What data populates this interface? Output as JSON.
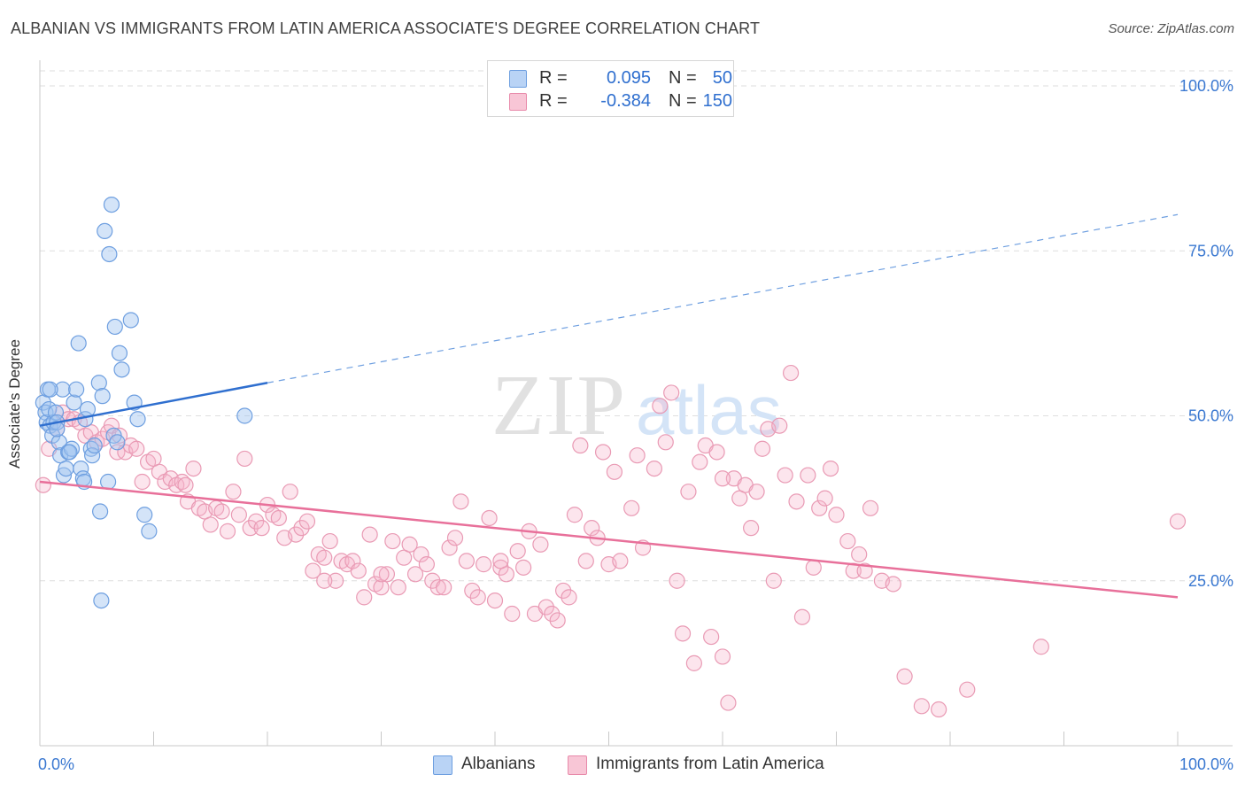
{
  "title": "ALBANIAN VS IMMIGRANTS FROM LATIN AMERICA ASSOCIATE'S DEGREE CORRELATION CHART",
  "source": "Source: ZipAtlas.com",
  "watermark": {
    "zip": "ZIP",
    "atlas": "atlas"
  },
  "legend": {
    "r_label": "R =",
    "n_label": "N =",
    "rows": [
      {
        "r": "0.095",
        "n": "50",
        "fill": "#b9d3f5",
        "stroke": "#6e9fe0"
      },
      {
        "r": "-0.384",
        "n": "150",
        "fill": "#f8c6d6",
        "stroke": "#e88aaa"
      }
    ]
  },
  "bottom_legend": [
    {
      "label": "Albanians",
      "fill": "#b9d3f5",
      "stroke": "#6e9fe0"
    },
    {
      "label": "Immigrants from Latin America",
      "fill": "#f8c6d6",
      "stroke": "#e88aaa"
    }
  ],
  "colors": {
    "blue": "#2f6fcf",
    "pink": "#e8709a",
    "grid": "#dedede",
    "axis_text": "#3a78d1"
  },
  "chart_data": {
    "type": "scatter",
    "title": "ALBANIAN VS IMMIGRANTS FROM LATIN AMERICA ASSOCIATE'S DEGREE CORRELATION CHART",
    "xlabel": "",
    "ylabel": "Associate's Degree",
    "xlim": [
      0,
      100
    ],
    "ylim": [
      0,
      102
    ],
    "x_tick_labels": [
      "0.0%",
      "100.0%"
    ],
    "y_ticks": [
      25,
      50,
      75,
      100
    ],
    "y_tick_labels": [
      "25.0%",
      "50.0%",
      "75.0%",
      "100.0%"
    ],
    "grid": "horizontal-dashed",
    "series": [
      {
        "name": "Albanians",
        "R": 0.095,
        "N": 50,
        "trend": {
          "x0": 0,
          "y0": 48.5,
          "x1": 20,
          "y1": 55,
          "dashed_to_x": 100,
          "dashed_to_y": 80.5
        },
        "points": [
          [
            0.3,
            52
          ],
          [
            0.5,
            50.5
          ],
          [
            0.6,
            49
          ],
          [
            0.7,
            54
          ],
          [
            0.8,
            51
          ],
          [
            0.9,
            48.5
          ],
          [
            1.1,
            47
          ],
          [
            1.2,
            49
          ],
          [
            1.4,
            50.5
          ],
          [
            1.5,
            49
          ],
          [
            1.7,
            46
          ],
          [
            1.8,
            44
          ],
          [
            2,
            54
          ],
          [
            2.1,
            41
          ],
          [
            2.3,
            42
          ],
          [
            2.5,
            44.5
          ],
          [
            2.8,
            45
          ],
          [
            3,
            52
          ],
          [
            3.2,
            54
          ],
          [
            3.4,
            61
          ],
          [
            3.6,
            42
          ],
          [
            3.8,
            40.5
          ],
          [
            4,
            49.5
          ],
          [
            4.2,
            51
          ],
          [
            4.5,
            45
          ],
          [
            4.6,
            44
          ],
          [
            4.8,
            45.5
          ],
          [
            5.2,
            55
          ],
          [
            5.3,
            35.5
          ],
          [
            5.4,
            22
          ],
          [
            5.5,
            53
          ],
          [
            5.7,
            78
          ],
          [
            6,
            40
          ],
          [
            6.1,
            74.5
          ],
          [
            6.3,
            82
          ],
          [
            6.5,
            47
          ],
          [
            6.6,
            63.5
          ],
          [
            7,
            59.5
          ],
          [
            7.2,
            57
          ],
          [
            8,
            64.5
          ],
          [
            8.3,
            52
          ],
          [
            8.6,
            49.5
          ],
          [
            9.2,
            35
          ],
          [
            9.6,
            32.5
          ],
          [
            18,
            50
          ],
          [
            1.5,
            48
          ],
          [
            2.6,
            44.5
          ],
          [
            3.9,
            40
          ],
          [
            6.8,
            46
          ],
          [
            0.9,
            54
          ]
        ]
      },
      {
        "name": "Immigrants from Latin America",
        "R": -0.384,
        "N": 150,
        "trend": {
          "x0": 0,
          "y0": 40,
          "x1": 100,
          "y1": 22.5
        },
        "points": [
          [
            0.3,
            39.5
          ],
          [
            0.8,
            45
          ],
          [
            1.5,
            48
          ],
          [
            2,
            50.5
          ],
          [
            2.5,
            49.5
          ],
          [
            3,
            49.5
          ],
          [
            3.5,
            49
          ],
          [
            4,
            47
          ],
          [
            4.5,
            47.5
          ],
          [
            5,
            46
          ],
          [
            5.5,
            46.5
          ],
          [
            6,
            47.5
          ],
          [
            6.3,
            48.5
          ],
          [
            6.8,
            44.5
          ],
          [
            7,
            47
          ],
          [
            7.5,
            44.5
          ],
          [
            8,
            45.5
          ],
          [
            8.5,
            45
          ],
          [
            9,
            40
          ],
          [
            9.5,
            43
          ],
          [
            10,
            43.5
          ],
          [
            10.5,
            41.5
          ],
          [
            11,
            40
          ],
          [
            11.5,
            40.5
          ],
          [
            12,
            39.5
          ],
          [
            12.5,
            40
          ],
          [
            12.8,
            39.5
          ],
          [
            13,
            37
          ],
          [
            13.5,
            42
          ],
          [
            14,
            36
          ],
          [
            14.5,
            35.5
          ],
          [
            15,
            33.5
          ],
          [
            15.5,
            36
          ],
          [
            16,
            35.5
          ],
          [
            16.5,
            32.5
          ],
          [
            17,
            38.5
          ],
          [
            17.5,
            35
          ],
          [
            18,
            43.5
          ],
          [
            18.5,
            33
          ],
          [
            19,
            34
          ],
          [
            19.5,
            33
          ],
          [
            20,
            36.5
          ],
          [
            20.5,
            35
          ],
          [
            21,
            34.5
          ],
          [
            21.5,
            31.5
          ],
          [
            22,
            38.5
          ],
          [
            22.5,
            32
          ],
          [
            23,
            33
          ],
          [
            23.5,
            34
          ],
          [
            24,
            26.5
          ],
          [
            24.5,
            29
          ],
          [
            25,
            28.5
          ],
          [
            25.5,
            31
          ],
          [
            26,
            25
          ],
          [
            26.5,
            28
          ],
          [
            27,
            27.5
          ],
          [
            27.5,
            28
          ],
          [
            28,
            26.5
          ],
          [
            28.5,
            22.5
          ],
          [
            29,
            32
          ],
          [
            29.5,
            24.5
          ],
          [
            30,
            24
          ],
          [
            30.5,
            26
          ],
          [
            31,
            31
          ],
          [
            31.5,
            24
          ],
          [
            32,
            28.5
          ],
          [
            32.5,
            30.5
          ],
          [
            33,
            26
          ],
          [
            33.5,
            29
          ],
          [
            34,
            27.5
          ],
          [
            34.5,
            25
          ],
          [
            35,
            24
          ],
          [
            35.5,
            24
          ],
          [
            36,
            30
          ],
          [
            36.5,
            31.5
          ],
          [
            37,
            37
          ],
          [
            37.5,
            28
          ],
          [
            38,
            23.5
          ],
          [
            38.5,
            22.5
          ],
          [
            39,
            27.5
          ],
          [
            39.5,
            34.5
          ],
          [
            40,
            22
          ],
          [
            40.5,
            27
          ],
          [
            41,
            26
          ],
          [
            41.5,
            20
          ],
          [
            42,
            29.5
          ],
          [
            42.5,
            27
          ],
          [
            43,
            32.5
          ],
          [
            43.5,
            20
          ],
          [
            44,
            30.5
          ],
          [
            44.5,
            21
          ],
          [
            45,
            20
          ],
          [
            45.5,
            19
          ],
          [
            46,
            23.5
          ],
          [
            46.5,
            22.5
          ],
          [
            47,
            35
          ],
          [
            47.5,
            45.5
          ],
          [
            48,
            28
          ],
          [
            48.5,
            33
          ],
          [
            49,
            31.5
          ],
          [
            49.5,
            44.5
          ],
          [
            50,
            27.5
          ],
          [
            50.5,
            41.5
          ],
          [
            51,
            28
          ],
          [
            52,
            36
          ],
          [
            52.5,
            44
          ],
          [
            53,
            30
          ],
          [
            54,
            42
          ],
          [
            54.5,
            51.5
          ],
          [
            55,
            46
          ],
          [
            55.5,
            53.5
          ],
          [
            56,
            25
          ],
          [
            56.5,
            17
          ],
          [
            57,
            38.5
          ],
          [
            57.5,
            12.5
          ],
          [
            58,
            43
          ],
          [
            58.5,
            45.5
          ],
          [
            59,
            16.5
          ],
          [
            59.5,
            44.5
          ],
          [
            60,
            13.5
          ],
          [
            60.5,
            6.5
          ],
          [
            61,
            40.5
          ],
          [
            61.5,
            37.5
          ],
          [
            62,
            39.5
          ],
          [
            62.5,
            33
          ],
          [
            63,
            38.5
          ],
          [
            63.5,
            45
          ],
          [
            64,
            48
          ],
          [
            64.5,
            25
          ],
          [
            65,
            48.5
          ],
          [
            65.5,
            41
          ],
          [
            66,
            56.5
          ],
          [
            66.5,
            37
          ],
          [
            67,
            19.5
          ],
          [
            67.5,
            41
          ],
          [
            68,
            27
          ],
          [
            68.5,
            36
          ],
          [
            69,
            37.5
          ],
          [
            69.5,
            42
          ],
          [
            70,
            35
          ],
          [
            71,
            31
          ],
          [
            71.5,
            26.5
          ],
          [
            72,
            29
          ],
          [
            72.5,
            26.5
          ],
          [
            73,
            36
          ],
          [
            74,
            25
          ],
          [
            75,
            24.5
          ],
          [
            76,
            10.5
          ],
          [
            77.5,
            6
          ],
          [
            79,
            5.5
          ],
          [
            81.5,
            8.5
          ],
          [
            88,
            15
          ],
          [
            100,
            34
          ],
          [
            60,
            40.5
          ],
          [
            40.5,
            28
          ],
          [
            30,
            26
          ],
          [
            25,
            25
          ]
        ]
      }
    ]
  }
}
